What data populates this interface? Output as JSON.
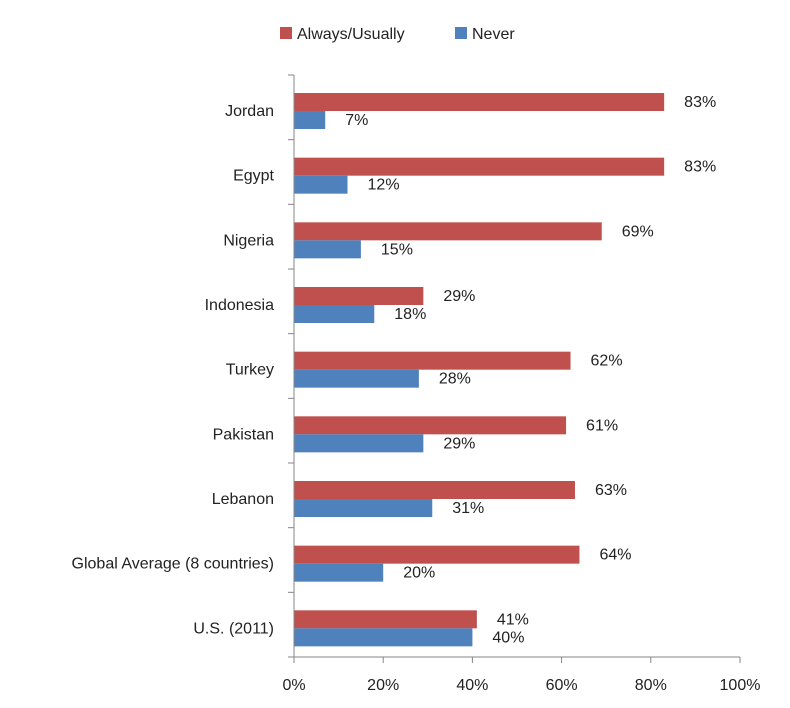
{
  "chart_data": {
    "type": "bar",
    "orientation": "horizontal",
    "title": "",
    "xlabel": "",
    "ylabel": "",
    "xlim": [
      0,
      100
    ],
    "x_ticks": [
      "0%",
      "20%",
      "40%",
      "60%",
      "80%",
      "100%"
    ],
    "x_tick_values": [
      0,
      20,
      40,
      60,
      80,
      100
    ],
    "grid": false,
    "legend_position": "top-center",
    "categories": [
      "Jordan",
      "Egypt",
      "Nigeria",
      "Indonesia",
      "Turkey",
      "Pakistan",
      "Lebanon",
      "Global Average (8 countries)",
      "U.S. (2011)"
    ],
    "series": [
      {
        "name": "Always/Usually",
        "color": "#c0504d",
        "values": [
          83,
          83,
          69,
          29,
          62,
          61,
          63,
          64,
          41
        ],
        "labels": [
          "83%",
          "83%",
          "69%",
          "29%",
          "62%",
          "61%",
          "63%",
          "64%",
          "41%"
        ]
      },
      {
        "name": "Never",
        "color": "#4f81bd",
        "values": [
          7,
          12,
          15,
          18,
          28,
          29,
          31,
          20,
          40
        ],
        "labels": [
          "7%",
          "12%",
          "15%",
          "18%",
          "28%",
          "29%",
          "31%",
          "20%",
          "40%"
        ]
      }
    ]
  }
}
